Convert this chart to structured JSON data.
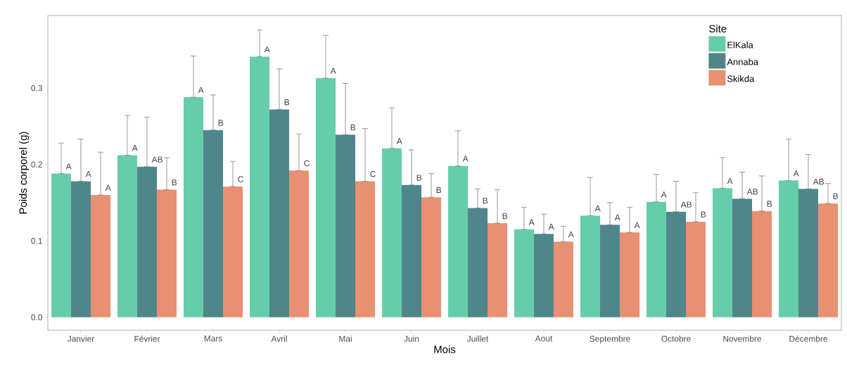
{
  "chart_data": {
    "type": "bar",
    "xlabel": "Mois",
    "ylabel": "Poids corporel (g)",
    "legend_title": "Site",
    "legend": "top right",
    "grid": false,
    "categories": [
      "Janvier",
      "Février",
      "Mars",
      "Avril",
      "Mai",
      "Juin",
      "Juillet",
      "Aout",
      "Septembre",
      "Octobre",
      "Novembre",
      "Décembre"
    ],
    "ylim": [
      -0.017,
      0.395
    ],
    "yticks": [
      {
        "value": 0,
        "label": "0.0"
      },
      0.1,
      0.2,
      0.3
    ],
    "series": [
      {
        "name": "ElKala",
        "color": "#66cdaa",
        "values": [
          0.188,
          0.212,
          0.288,
          0.341,
          0.313,
          0.221,
          0.198,
          0.115,
          0.133,
          0.151,
          0.169,
          0.179
        ],
        "errors": [
          [
            0.188,
            0.228
          ],
          [
            0.212,
            0.264
          ],
          [
            0.288,
            0.342
          ],
          [
            0.341,
            0.376
          ],
          [
            0.313,
            0.369
          ],
          [
            0.221,
            0.274
          ],
          [
            0.198,
            0.244
          ],
          [
            0.115,
            0.144
          ],
          [
            0.133,
            0.183
          ],
          [
            0.151,
            0.187
          ],
          [
            0.169,
            0.209
          ],
          [
            0.179,
            0.233
          ]
        ],
        "value_labels": [
          "A",
          "A",
          "A",
          "A",
          "A",
          "A",
          "A",
          "A",
          "A",
          "A",
          "A",
          "A"
        ]
      },
      {
        "name": "Annaba",
        "color": "#4f868b",
        "values": [
          0.178,
          0.197,
          0.245,
          0.272,
          0.239,
          0.173,
          0.143,
          0.109,
          0.121,
          0.138,
          0.155,
          0.168
        ],
        "errors": [
          [
            0.178,
            0.233
          ],
          [
            0.197,
            0.262
          ],
          [
            0.245,
            0.291
          ],
          [
            0.272,
            0.325
          ],
          [
            0.239,
            0.306
          ],
          [
            0.173,
            0.219
          ],
          [
            0.143,
            0.168
          ],
          [
            0.109,
            0.135
          ],
          [
            0.121,
            0.15
          ],
          [
            0.138,
            0.178
          ],
          [
            0.155,
            0.19
          ],
          [
            0.168,
            0.213
          ]
        ],
        "value_labels": [
          "A",
          "AB",
          "B",
          "B",
          "B",
          "B",
          "B",
          "A",
          "A",
          "AB",
          "AB",
          "AB"
        ]
      },
      {
        "name": "Skikda",
        "color": "#e98f72",
        "values": [
          0.16,
          0.167,
          0.171,
          0.192,
          0.178,
          0.157,
          0.123,
          0.099,
          0.111,
          0.125,
          0.139,
          0.149
        ],
        "errors": [
          [
            0.16,
            0.216
          ],
          [
            0.167,
            0.209
          ],
          [
            0.171,
            0.204
          ],
          [
            0.192,
            0.24
          ],
          [
            0.178,
            0.247
          ],
          [
            0.157,
            0.188
          ],
          [
            0.123,
            0.167
          ],
          [
            0.099,
            0.119
          ],
          [
            0.111,
            0.144
          ],
          [
            0.125,
            0.163
          ],
          [
            0.139,
            0.185
          ],
          [
            0.149,
            0.175
          ]
        ],
        "value_labels": [
          "A",
          "B",
          "C",
          "C",
          "C",
          "B",
          "B",
          "A",
          "A",
          "B",
          "B",
          "B"
        ]
      }
    ]
  }
}
